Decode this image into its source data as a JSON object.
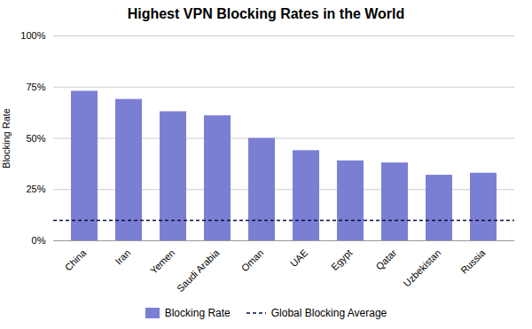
{
  "chart_data": {
    "type": "bar",
    "title": "Highest VPN Blocking Rates in the World",
    "categories": [
      "China",
      "Iran",
      "Yemen",
      "Saudi Arabia",
      "Oman",
      "UAE",
      "Egypt",
      "Qatar",
      "Uzbekistan",
      "Russia"
    ],
    "series": [
      {
        "name": "Blocking Rate",
        "color": "#7B7FD4",
        "values": [
          0.73,
          0.69,
          0.63,
          0.61,
          0.5,
          0.44,
          0.39,
          0.38,
          0.32,
          0.33
        ]
      }
    ],
    "reference_line": {
      "name": "Global Blocking Average",
      "value": 0.1,
      "color": "#0d0d3d",
      "line_style": "dashed"
    },
    "ylabel": "Blocking Rate",
    "ylim": [
      0,
      1.0
    ],
    "yticks": [
      {
        "value": 0,
        "label": "0%"
      },
      {
        "value": 0.25,
        "label": "25%"
      },
      {
        "value": 0.5,
        "label": "50%"
      },
      {
        "value": 0.75,
        "label": "75%"
      },
      {
        "value": 1.0,
        "label": "100%"
      }
    ],
    "grid": true,
    "legend": "bottom"
  }
}
